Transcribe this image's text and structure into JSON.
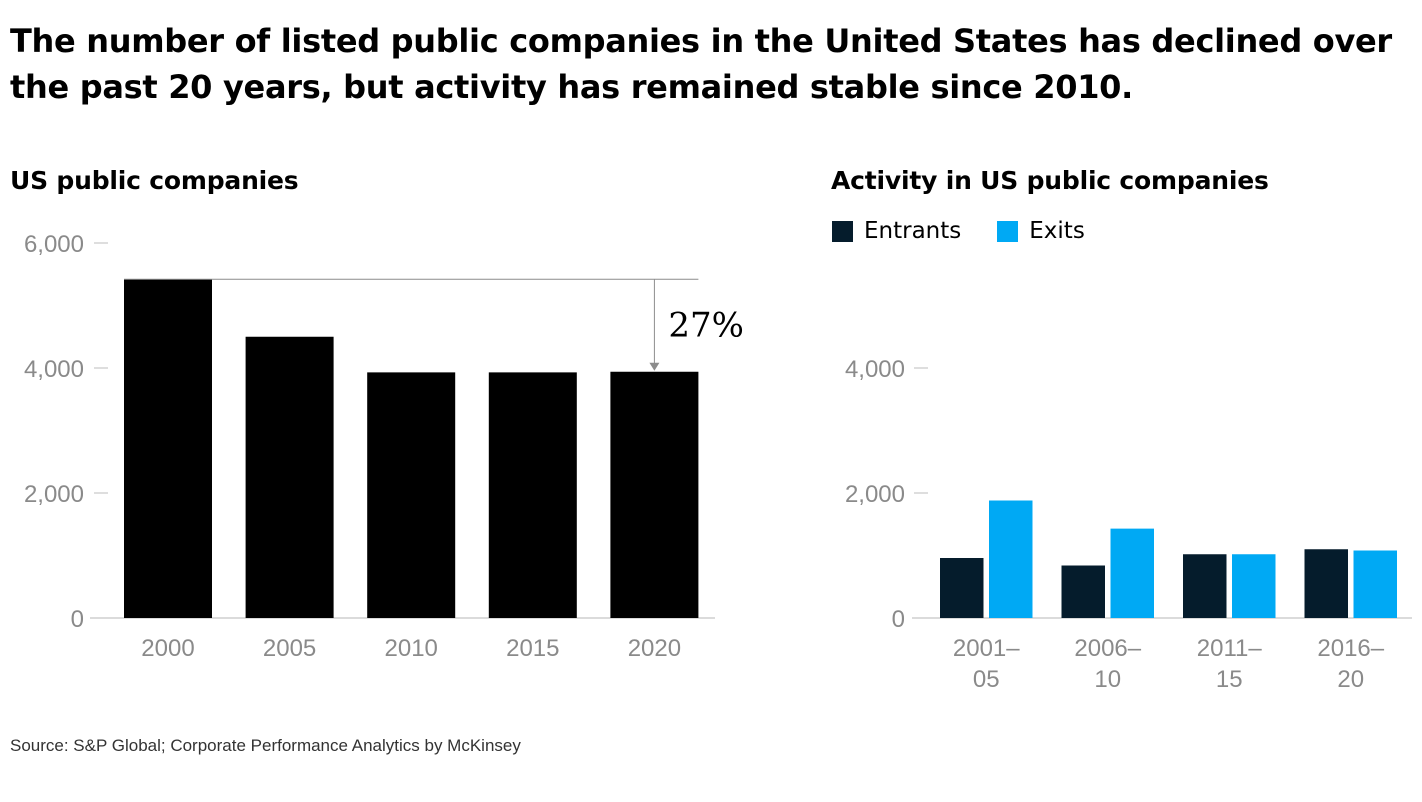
{
  "title": "The number of listed public companies in the United States has declined over the past 20 years, but activity has remained stable since 2010.",
  "source": "Source: S&P Global; Corporate Performance Analytics by McKinsey",
  "chart_data": [
    {
      "type": "bar",
      "title": "US public companies",
      "categories": [
        "2000",
        "2005",
        "2010",
        "2015",
        "2020"
      ],
      "values": [
        5420,
        4500,
        3930,
        3930,
        3940
      ],
      "ylim": [
        0,
        6000
      ],
      "yticks": [
        0,
        2000,
        4000,
        6000
      ],
      "ytick_labels": [
        "0",
        "2,000",
        "4,000",
        "6,000"
      ],
      "bar_color": "#000000",
      "annotation": {
        "text": "27%",
        "from_category": "2000",
        "to_category": "2020"
      }
    },
    {
      "type": "bar",
      "title": "Activity in US public companies",
      "categories": [
        "2001–\n05",
        "2006–\n10",
        "2011–\n15",
        "2016–\n20"
      ],
      "series": [
        {
          "name": "Entrants",
          "color": "#051c2c",
          "values": [
            960,
            840,
            1020,
            1100
          ]
        },
        {
          "name": "Exits",
          "color": "#00a9f4",
          "values": [
            1880,
            1430,
            1020,
            1080
          ]
        }
      ],
      "ylim": [
        0,
        4000
      ],
      "yticks": [
        0,
        2000,
        4000
      ],
      "ytick_labels": [
        "0",
        "2,000",
        "4,000"
      ],
      "legend_position": "top-left"
    }
  ]
}
